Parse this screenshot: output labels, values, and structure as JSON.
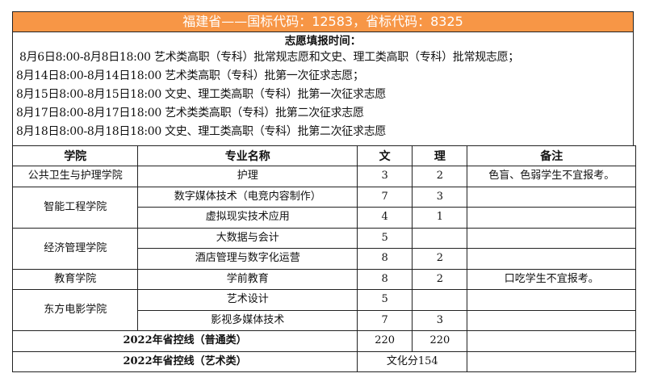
{
  "title": "福建省——国标代码：12583，省标代码：8325",
  "colors": {
    "title_bg": "#F79646",
    "title_text": "#FFFFFF"
  },
  "schedule": {
    "heading": "志愿填报时间：",
    "lines": [
      "8月6日8:00-8月8日18:00 艺术类高职（专科）批常规志愿和文史、理工类高职（专科）批常规志愿；",
      "8月14日8:00-8月14日18:00 艺术类高职（专科）批第一次征求志愿；",
      "8月15日8:00-8月15日18:00 文史、理工类高职（专科）批第一次征求志愿",
      "8月17日8:00-8月17日18:00 艺术类类高职（专科）批第二次征求志愿",
      "8月18日8:00-8月18日18:00 文史、理工类高职（专科）批第二次征求志愿"
    ]
  },
  "table": {
    "headers": [
      "学院",
      "专业名称",
      "文",
      "理",
      "备注"
    ],
    "colleges": [
      {
        "name": "公共卫生与护理学院",
        "majors": [
          {
            "name": "护理",
            "wen": "3",
            "li": "2",
            "note": "色盲、色弱学生不宜报考。"
          }
        ]
      },
      {
        "name": "智能工程学院",
        "majors": [
          {
            "name": "数字媒体技术（电竞内容制作）",
            "wen": "7",
            "li": "3",
            "note": ""
          },
          {
            "name": "虚拟现实技术应用",
            "wen": "4",
            "li": "1",
            "note": ""
          }
        ]
      },
      {
        "name": "经济管理学院",
        "majors": [
          {
            "name": "大数据与会计",
            "wen": "5",
            "li": "",
            "note": ""
          },
          {
            "name": "酒店管理与数字化运营",
            "wen": "8",
            "li": "2",
            "note": ""
          }
        ]
      },
      {
        "name": "教育学院",
        "majors": [
          {
            "name": "学前教育",
            "wen": "8",
            "li": "2",
            "note": "口吃学生不宜报考。"
          }
        ]
      },
      {
        "name": "东方电影学院",
        "majors": [
          {
            "name": "艺术设计",
            "wen": "5",
            "li": "",
            "note": ""
          },
          {
            "name": "影视多媒体技术",
            "wen": "7",
            "li": "3",
            "note": ""
          }
        ]
      }
    ],
    "footer": {
      "general_label": "2022年省控线（普通类）",
      "general_wen": "220",
      "general_li": "220",
      "art_label": "2022年省控线（艺术类）",
      "art_value": "文化分154"
    }
  }
}
